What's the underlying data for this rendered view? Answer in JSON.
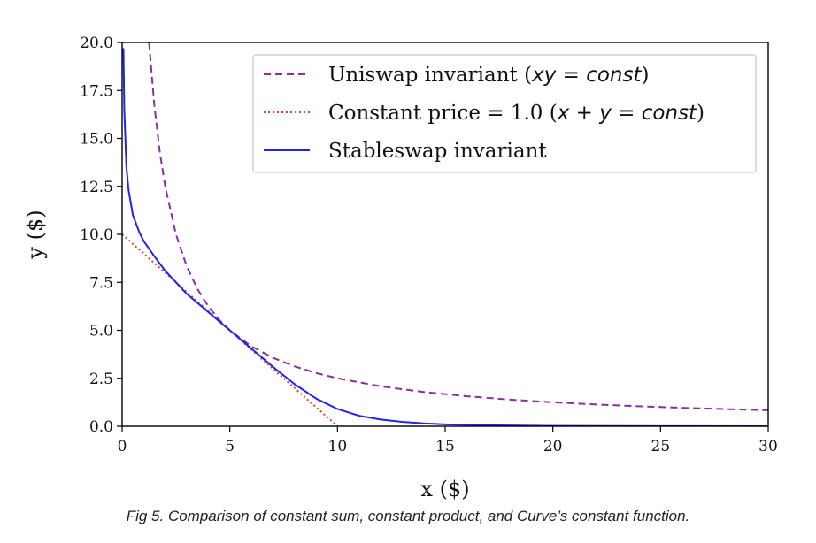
{
  "chart_data": {
    "type": "line",
    "xlabel": "x ($)",
    "ylabel": "y ($)",
    "xlim": [
      0,
      30
    ],
    "ylim": [
      0,
      20
    ],
    "xticks": [
      0,
      5,
      10,
      15,
      20,
      25,
      30
    ],
    "xtick_labels": [
      "0",
      "5",
      "10",
      "15",
      "20",
      "25",
      "30"
    ],
    "yticks": [
      0,
      2.5,
      5,
      7.5,
      10,
      12.5,
      15,
      17.5,
      20
    ],
    "ytick_labels": [
      "0.0",
      "2.5",
      "5.0",
      "7.5",
      "10.0",
      "12.5",
      "15.0",
      "17.5",
      "20.0"
    ],
    "grid": false,
    "legend_position": "top-right",
    "legend": {
      "uniswap": {
        "prefix": "Uniswap invariant (",
        "math": "xy = const",
        "suffix": ")"
      },
      "constant": {
        "prefix": "Constant price = 1.0 (",
        "math": "x + y = const",
        "suffix": ")"
      },
      "stableswap": {
        "label": "Stableswap invariant"
      }
    },
    "series": [
      {
        "name": "Uniswap invariant (xy = const)",
        "style": "dashed",
        "color": "#8b2e9e",
        "x": [
          1.25,
          1.5,
          1.75,
          2,
          2.5,
          3,
          3.5,
          4,
          4.5,
          5,
          6,
          7,
          8,
          9,
          10,
          12,
          14,
          16,
          18,
          20,
          22,
          24,
          26,
          28,
          30
        ],
        "y": [
          20.0,
          16.667,
          14.286,
          12.5,
          10.0,
          8.333,
          7.143,
          6.25,
          5.556,
          5.0,
          4.167,
          3.571,
          3.125,
          2.778,
          2.5,
          2.083,
          1.786,
          1.563,
          1.389,
          1.25,
          1.136,
          1.042,
          0.962,
          0.893,
          0.833
        ]
      },
      {
        "name": "Constant price = 1.0 (x + y = const)",
        "style": "dotted",
        "color": "#e8402c",
        "x": [
          0,
          10
        ],
        "y": [
          10,
          0
        ]
      },
      {
        "name": "Stableswap invariant",
        "style": "solid",
        "color": "#2222ee",
        "x": [
          0.06,
          0.1,
          0.2,
          0.3,
          0.5,
          0.8,
          1.0,
          1.5,
          2.0,
          3.0,
          4.0,
          5.0,
          6.0,
          7.0,
          8.0,
          9.0,
          10.0,
          11.0,
          12.0,
          13.0,
          14.0,
          15.0,
          17.0,
          20.0,
          25.0,
          30.0
        ],
        "y": [
          19.7,
          16.5,
          13.5,
          12.3,
          11.0,
          10.1,
          9.65,
          8.85,
          8.1,
          6.9,
          5.95,
          5.0,
          4.05,
          3.1,
          2.2,
          1.45,
          0.9,
          0.55,
          0.35,
          0.23,
          0.15,
          0.1,
          0.05,
          0.02,
          0.005,
          0.0
        ]
      }
    ]
  },
  "caption": "Fig 5. Comparison of constant sum, constant product, and Curve’s constant function."
}
